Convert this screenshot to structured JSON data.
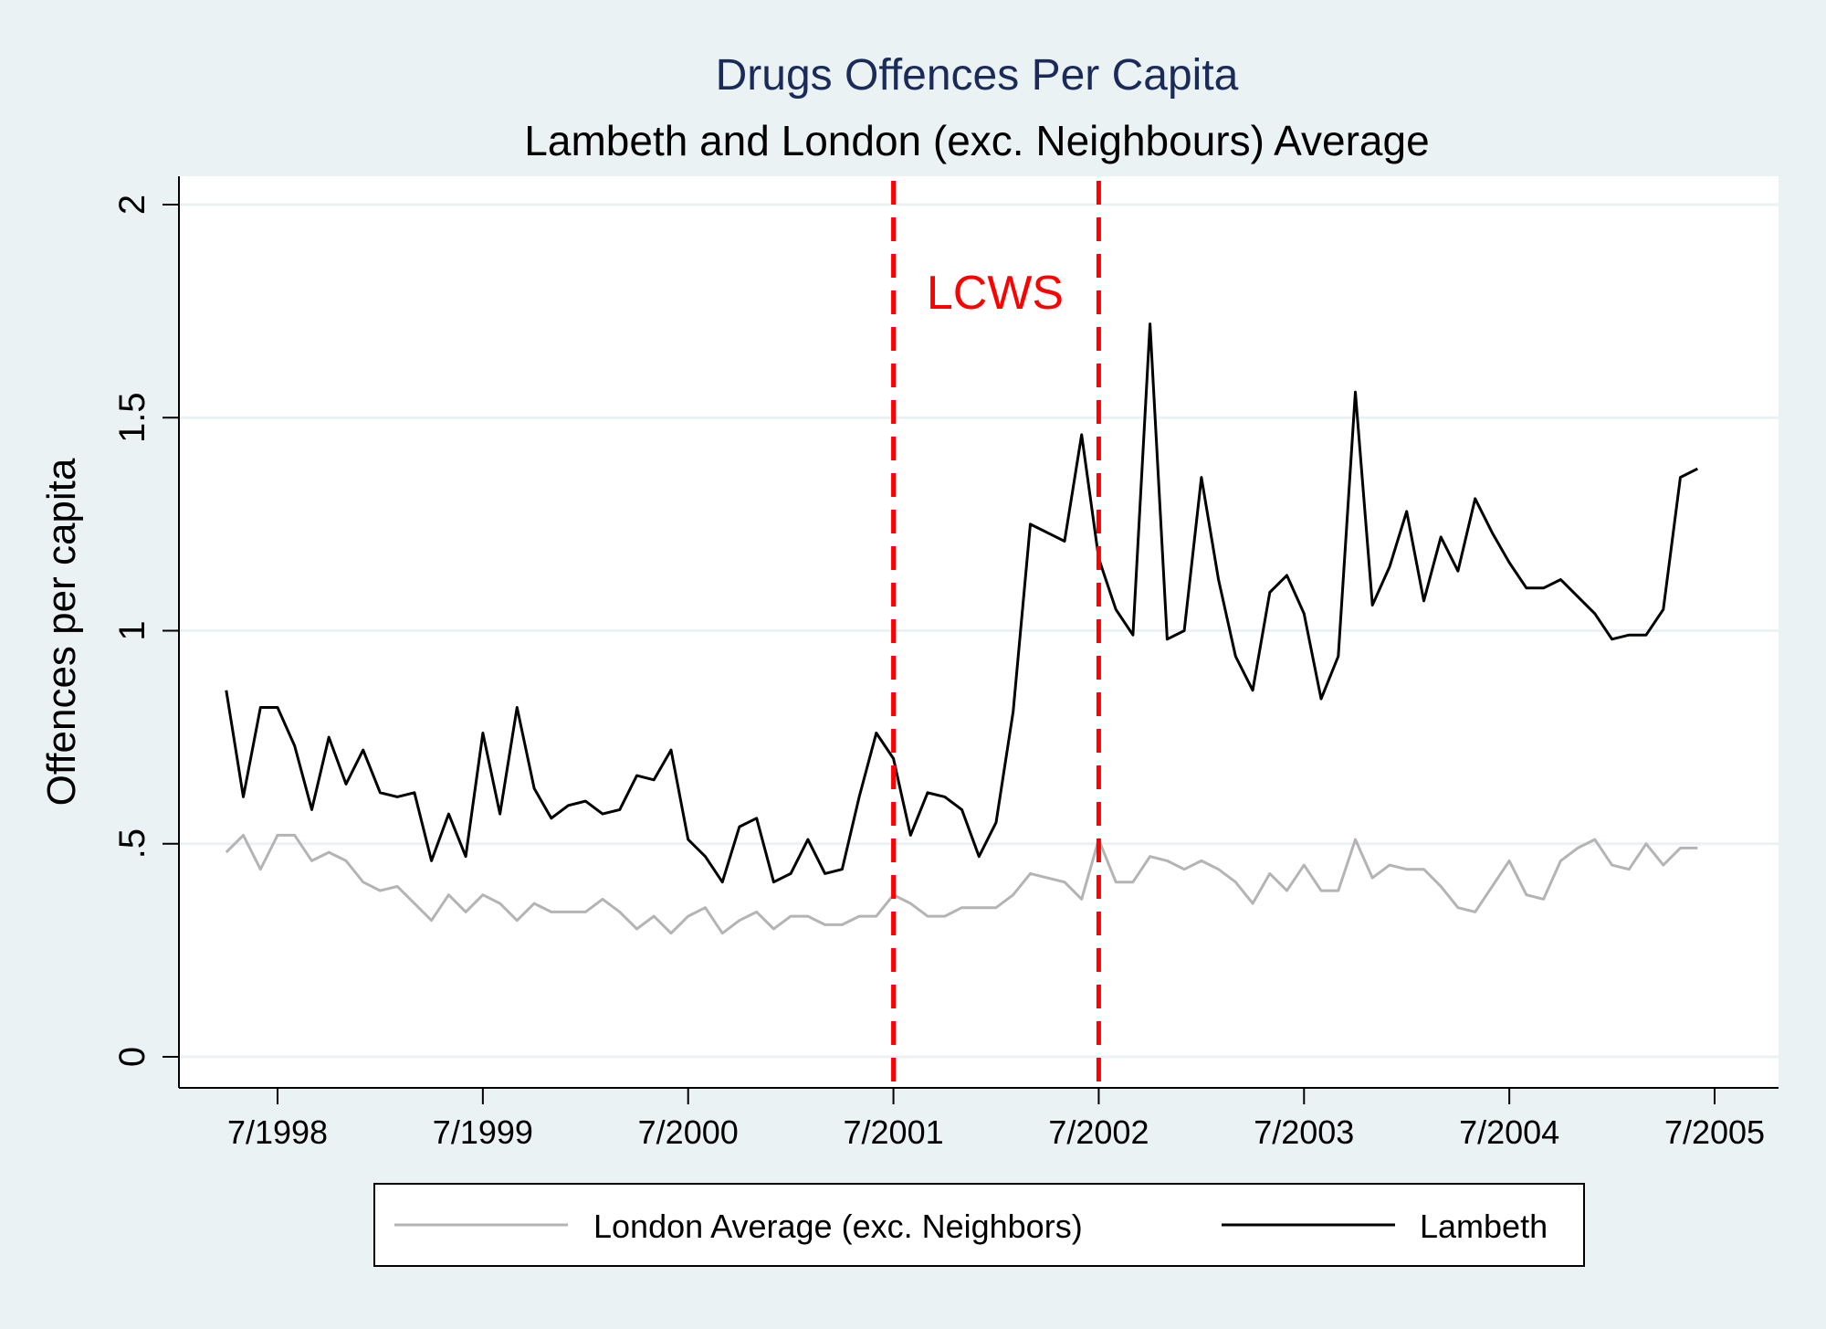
{
  "chart_data": {
    "type": "line",
    "title": "Drugs Offences Per Capita",
    "subtitle": "Lambeth and London (exc. Neighbours) Average",
    "xlabel": "",
    "ylabel": "Offences per capita",
    "ylim": [
      0,
      2
    ],
    "xlim": [
      "1998-01",
      "2005-07"
    ],
    "y_ticks": [
      {
        "value": 0,
        "label": "0"
      },
      {
        "value": 0.5,
        "label": ".5"
      },
      {
        "value": 1,
        "label": "1"
      },
      {
        "value": 1.5,
        "label": "1.5"
      },
      {
        "value": 2,
        "label": "2"
      }
    ],
    "x_ticks": [
      {
        "value": "1998-07",
        "label": "7/1998"
      },
      {
        "value": "1999-07",
        "label": "7/1999"
      },
      {
        "value": "2000-07",
        "label": "7/2000"
      },
      {
        "value": "2001-07",
        "label": "7/2001"
      },
      {
        "value": "2002-07",
        "label": "7/2002"
      },
      {
        "value": "2003-07",
        "label": "7/2003"
      },
      {
        "value": "2004-07",
        "label": "7/2004"
      },
      {
        "value": "2005-07",
        "label": "7/2005"
      }
    ],
    "grid": "horizontal",
    "legend_position": "bottom",
    "annotations": [
      {
        "text": "LCWS",
        "color": "#ff0000",
        "x_from": "2001-07",
        "x_to": "2002-07"
      }
    ],
    "vlines": [
      {
        "x": "2001-07",
        "color": "#ff0000",
        "style": "dashed"
      },
      {
        "x": "2002-07",
        "color": "#ff0000",
        "style": "dashed"
      }
    ],
    "x": [
      "1998-04",
      "1998-05",
      "1998-06",
      "1998-07",
      "1998-08",
      "1998-09",
      "1998-10",
      "1998-11",
      "1998-12",
      "1999-01",
      "1999-02",
      "1999-03",
      "1999-04",
      "1999-05",
      "1999-06",
      "1999-07",
      "1999-08",
      "1999-09",
      "1999-10",
      "1999-11",
      "1999-12",
      "2000-01",
      "2000-02",
      "2000-03",
      "2000-04",
      "2000-05",
      "2000-06",
      "2000-07",
      "2000-08",
      "2000-09",
      "2000-10",
      "2000-11",
      "2000-12",
      "2001-01",
      "2001-02",
      "2001-03",
      "2001-04",
      "2001-05",
      "2001-06",
      "2001-07",
      "2001-08",
      "2001-09",
      "2001-10",
      "2001-11",
      "2001-12",
      "2002-01",
      "2002-02",
      "2002-03",
      "2002-04",
      "2002-05",
      "2002-06",
      "2002-07",
      "2002-08",
      "2002-09",
      "2002-10",
      "2002-11",
      "2002-12",
      "2003-01",
      "2003-02",
      "2003-03",
      "2003-04",
      "2003-05",
      "2003-06",
      "2003-07",
      "2003-08",
      "2003-09",
      "2003-10",
      "2003-11",
      "2003-12",
      "2004-01",
      "2004-02",
      "2004-03",
      "2004-04",
      "2004-05",
      "2004-06",
      "2004-07",
      "2004-08",
      "2004-09",
      "2004-10",
      "2004-11",
      "2004-12",
      "2005-01",
      "2005-02",
      "2005-03",
      "2005-04",
      "2005-05",
      "2005-06"
    ],
    "series": [
      {
        "name": "London Average (exc. Neighbors)",
        "color": "#b4b4b4",
        "values": [
          0.48,
          0.52,
          0.44,
          0.52,
          0.52,
          0.46,
          0.48,
          0.46,
          0.41,
          0.39,
          0.4,
          0.36,
          0.32,
          0.38,
          0.34,
          0.38,
          0.36,
          0.32,
          0.36,
          0.34,
          0.34,
          0.34,
          0.37,
          0.34,
          0.3,
          0.33,
          0.29,
          0.33,
          0.35,
          0.29,
          0.32,
          0.34,
          0.3,
          0.33,
          0.33,
          0.31,
          0.31,
          0.33,
          0.33,
          0.38,
          0.36,
          0.33,
          0.33,
          0.35,
          0.35,
          0.35,
          0.38,
          0.43,
          0.42,
          0.41,
          0.37,
          0.51,
          0.41,
          0.41,
          0.47,
          0.46,
          0.44,
          0.46,
          0.44,
          0.41,
          0.36,
          0.43,
          0.39,
          0.45,
          0.39,
          0.39,
          0.51,
          0.42,
          0.45,
          0.44,
          0.44,
          0.4,
          0.35,
          0.34,
          0.4,
          0.46,
          0.38,
          0.37,
          0.46,
          0.49,
          0.51,
          0.45,
          0.44,
          0.5,
          0.45,
          0.49,
          0.49
        ]
      },
      {
        "name": "Lambeth",
        "color": "#000000",
        "values": [
          0.86,
          0.61,
          0.82,
          0.82,
          0.73,
          0.58,
          0.75,
          0.64,
          0.72,
          0.62,
          0.61,
          0.62,
          0.46,
          0.57,
          0.47,
          0.76,
          0.57,
          0.82,
          0.63,
          0.56,
          0.59,
          0.6,
          0.57,
          0.58,
          0.66,
          0.65,
          0.72,
          0.51,
          0.47,
          0.41,
          0.54,
          0.56,
          0.41,
          0.43,
          0.51,
          0.43,
          0.44,
          0.61,
          0.76,
          0.7,
          0.52,
          0.62,
          0.61,
          0.58,
          0.47,
          0.55,
          0.81,
          1.25,
          1.23,
          1.21,
          1.46,
          1.17,
          1.05,
          0.99,
          1.72,
          0.98,
          1.0,
          1.36,
          1.12,
          0.94,
          0.86,
          1.09,
          1.13,
          1.04,
          0.84,
          0.94,
          1.56,
          1.06,
          1.15,
          1.28,
          1.07,
          1.22,
          1.14,
          1.31,
          1.23,
          1.16,
          1.1,
          1.1,
          1.12,
          1.08,
          1.04,
          0.98,
          0.99,
          0.99,
          1.05,
          1.36,
          1.38
        ]
      }
    ]
  },
  "legend": {
    "items": [
      {
        "label": "London Average (exc. Neighbors)",
        "color": "#b4b4b4"
      },
      {
        "label": "Lambeth",
        "color": "#000000"
      }
    ]
  },
  "colors": {
    "background": "#eaf2f3",
    "plot_background": "#ffffff",
    "gridline": "#eaf2f3",
    "title": "#1a2b5a"
  }
}
